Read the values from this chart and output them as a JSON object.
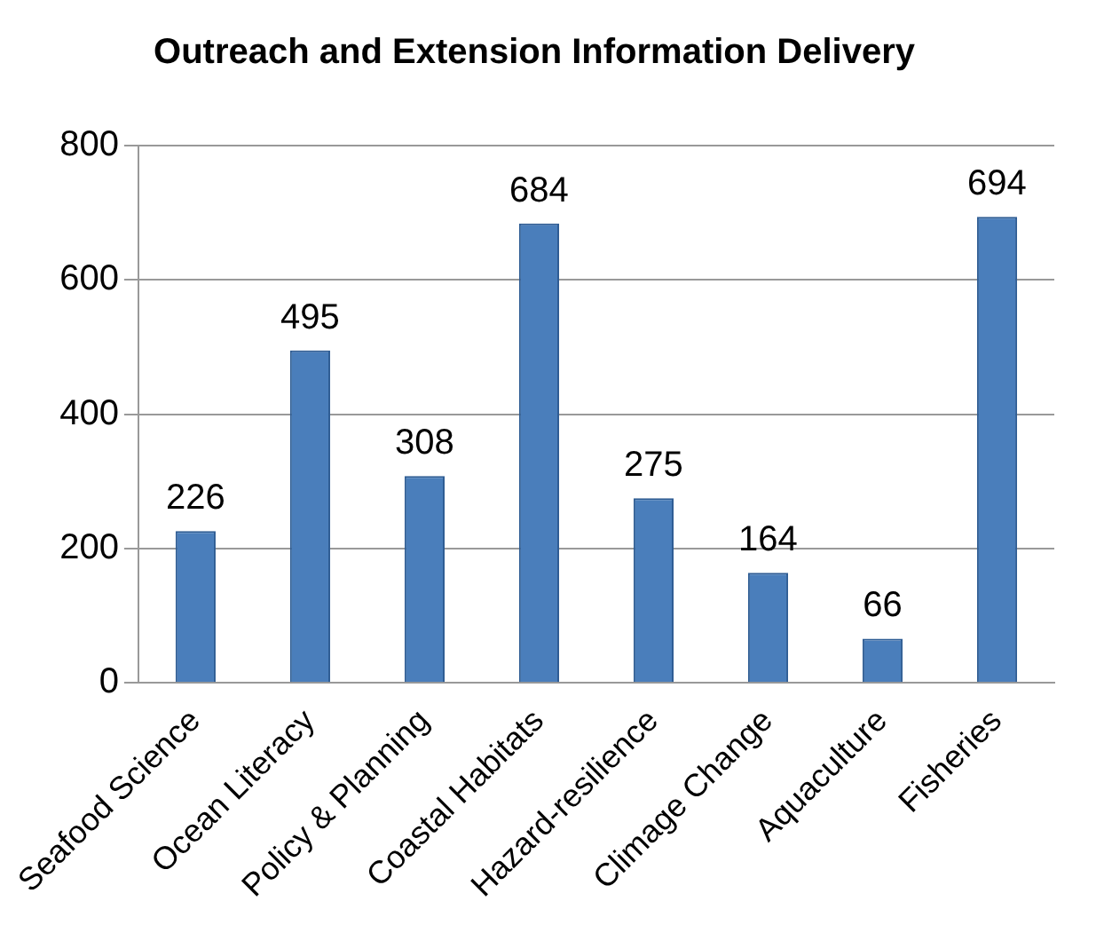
{
  "chart_data": {
    "type": "bar",
    "title": "Outreach and Extension Information Delivery",
    "categories": [
      "Seafood Science",
      "Ocean Literacy",
      "Policy & Planning",
      "Coastal Habitats",
      "Hazard-resilience",
      "Climage Change",
      "Aquaculture",
      "Fisheries"
    ],
    "values": [
      226,
      495,
      308,
      684,
      275,
      164,
      66,
      694
    ],
    "color": "#4a7ebb",
    "ylim": [
      0,
      800
    ],
    "yticks": [
      0,
      200,
      400,
      600,
      800
    ],
    "grid": "y",
    "data_labels": true,
    "legend": false
  }
}
